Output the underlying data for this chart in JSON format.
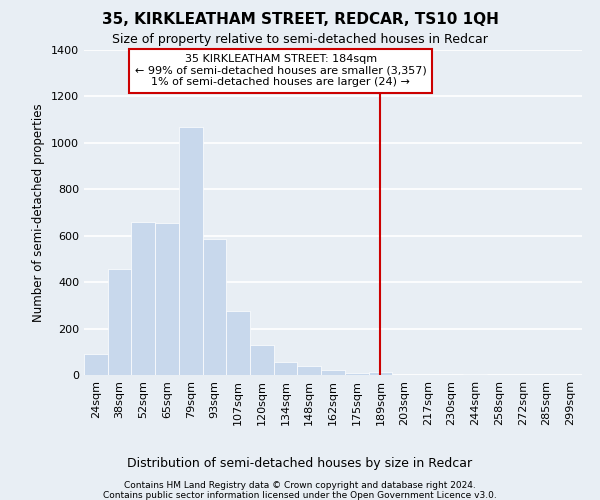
{
  "title": "35, KIRKLEATHAM STREET, REDCAR, TS10 1QH",
  "subtitle": "Size of property relative to semi-detached houses in Redcar",
  "xlabel": "Distribution of semi-detached houses by size in Redcar",
  "ylabel": "Number of semi-detached properties",
  "footer1": "Contains HM Land Registry data © Crown copyright and database right 2024.",
  "footer2": "Contains public sector information licensed under the Open Government Licence v3.0.",
  "annotation_title": "35 KIRKLEATHAM STREET: 184sqm",
  "annotation_line1": "← 99% of semi-detached houses are smaller (3,357)",
  "annotation_line2": "1% of semi-detached houses are larger (24) →",
  "categories": [
    "24sqm",
    "38sqm",
    "52sqm",
    "65sqm",
    "79sqm",
    "93sqm",
    "107sqm",
    "120sqm",
    "134sqm",
    "148sqm",
    "162sqm",
    "175sqm",
    "189sqm",
    "203sqm",
    "217sqm",
    "230sqm",
    "244sqm",
    "258sqm",
    "272sqm",
    "285sqm",
    "299sqm"
  ],
  "values": [
    90,
    455,
    660,
    655,
    1070,
    585,
    275,
    130,
    55,
    40,
    20,
    10,
    15,
    0,
    0,
    0,
    5,
    0,
    0,
    0,
    0
  ],
  "bar_color": "#c8d8ec",
  "bar_edge_color": "#ffffff",
  "property_line_index": 12,
  "ylim": [
    0,
    1400
  ],
  "yticks": [
    0,
    200,
    400,
    600,
    800,
    1000,
    1200,
    1400
  ],
  "background_color": "#e8eef4",
  "grid_color": "#ffffff",
  "annotation_box_facecolor": "#ffffff",
  "annotation_box_edgecolor": "#cc0000",
  "red_line_color": "#cc0000",
  "title_fontsize": 11,
  "subtitle_fontsize": 9,
  "ylabel_fontsize": 8.5,
  "xlabel_fontsize": 9,
  "tick_fontsize": 8,
  "footer_fontsize": 6.5,
  "annotation_fontsize": 8
}
